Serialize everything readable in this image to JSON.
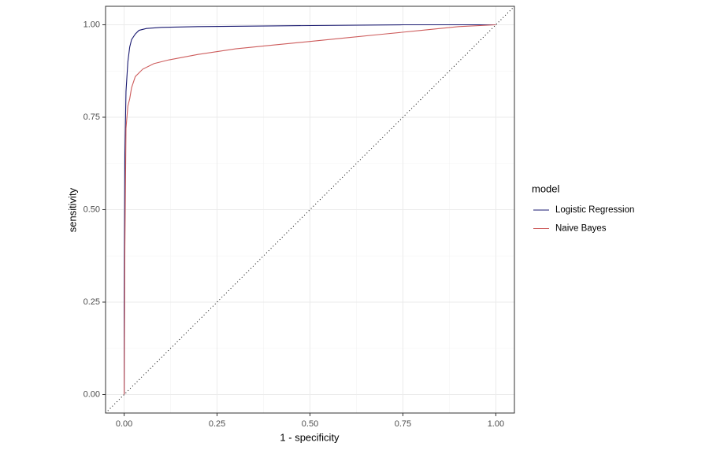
{
  "chart_data": {
    "type": "line",
    "x_label": "1 - specificity",
    "y_label": "sensitivity",
    "legend_title": "model",
    "legend_position": "right",
    "grid": true,
    "minor_grid": true,
    "diagonal": true,
    "xlim": [
      -0.05,
      1.05
    ],
    "ylim": [
      -0.05,
      1.05
    ],
    "xticks": [
      {
        "value": 0,
        "label": "0.00"
      },
      {
        "value": 0.25,
        "label": "0.25"
      },
      {
        "value": 0.5,
        "label": "0.50"
      },
      {
        "value": 0.75,
        "label": "0.75"
      },
      {
        "value": 1,
        "label": "1.00"
      }
    ],
    "yticks": [
      {
        "value": 0,
        "label": "0.00"
      },
      {
        "value": 0.25,
        "label": "0.25"
      },
      {
        "value": 0.5,
        "label": "0.50"
      },
      {
        "value": 0.75,
        "label": "0.75"
      },
      {
        "value": 1,
        "label": "1.00"
      }
    ],
    "series": [
      {
        "name": "Logistic Regression",
        "color": "#191970",
        "x": [
          0,
          0,
          0.002,
          0.005,
          0.01,
          0.015,
          0.02,
          0.03,
          0.04,
          0.06,
          0.1,
          0.2,
          0.4,
          0.75,
          1
        ],
        "values": [
          0,
          0.23,
          0.65,
          0.82,
          0.9,
          0.94,
          0.96,
          0.975,
          0.985,
          0.99,
          0.993,
          0.995,
          0.997,
          1,
          1
        ]
      },
      {
        "name": "Naive Bayes",
        "color": "#cd5c5c",
        "x": [
          0,
          0.002,
          0.005,
          0.01,
          0.015,
          0.02,
          0.03,
          0.05,
          0.08,
          0.12,
          0.2,
          0.3,
          0.4,
          0.5,
          0.6,
          0.7,
          0.8,
          0.9,
          1
        ],
        "values": [
          0,
          0.4,
          0.72,
          0.78,
          0.8,
          0.83,
          0.86,
          0.88,
          0.895,
          0.905,
          0.92,
          0.935,
          0.945,
          0.955,
          0.965,
          0.975,
          0.985,
          0.995,
          1
        ]
      }
    ]
  }
}
